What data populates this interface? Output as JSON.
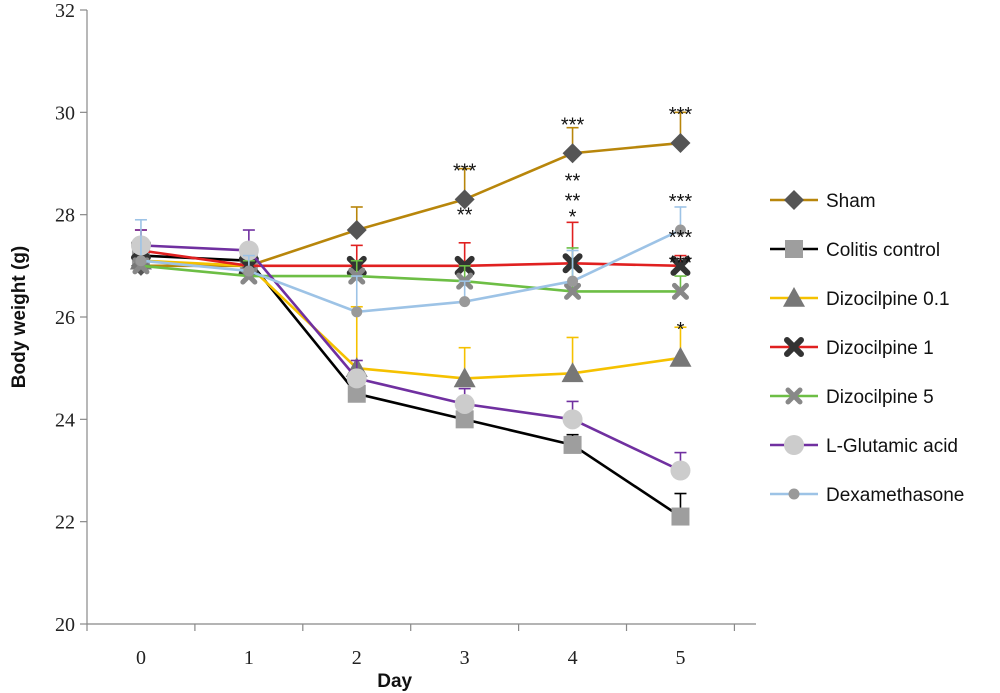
{
  "chart_data": {
    "type": "line",
    "xlabel": "Day",
    "ylabel": "Body weight (g)",
    "x": [
      0,
      1,
      2,
      3,
      4,
      5
    ],
    "xlim": [
      -0.5,
      5.7
    ],
    "ylim": [
      20,
      32
    ],
    "yticks": [
      20,
      22,
      24,
      26,
      28,
      30,
      32
    ],
    "grid": false,
    "legend_position": "right",
    "series": [
      {
        "name": "Sham",
        "color": "#B8860B",
        "marker": "diamond",
        "marker_color": "#555555",
        "values": [
          27.0,
          27.0,
          27.7,
          28.3,
          29.2,
          29.4
        ],
        "errors": [
          0.2,
          0.3,
          0.45,
          0.6,
          0.5,
          0.6
        ]
      },
      {
        "name": "Colitis control",
        "color": "#000000",
        "marker": "square",
        "marker_color": "#9e9e9e",
        "values": [
          27.2,
          27.1,
          24.5,
          24.0,
          23.5,
          22.1
        ],
        "errors": [
          0.3,
          0.3,
          0.2,
          0.2,
          0.2,
          0.45
        ]
      },
      {
        "name": "Dizocilpine 0.1",
        "color": "#F5C100",
        "marker": "triangle",
        "marker_color": "#777777",
        "values": [
          27.1,
          27.0,
          25.0,
          24.8,
          24.9,
          25.2
        ],
        "errors": [
          0.4,
          0.4,
          1.2,
          0.6,
          0.7,
          0.6
        ]
      },
      {
        "name": "Dizocilpine 1",
        "color": "#E02020",
        "marker": "x-bold",
        "marker_color": "#333333",
        "values": [
          27.3,
          27.0,
          27.0,
          27.0,
          27.05,
          27.0
        ],
        "errors": [
          0.4,
          0.35,
          0.4,
          0.45,
          0.8,
          0.2
        ]
      },
      {
        "name": "Dizocilpine 5",
        "color": "#6DBE45",
        "marker": "x",
        "marker_color": "#888888",
        "values": [
          27.0,
          26.8,
          26.8,
          26.7,
          26.5,
          26.5
        ],
        "errors": [
          0.3,
          0.3,
          0.3,
          0.3,
          0.85,
          0.3
        ]
      },
      {
        "name": "L-Glutamic acid",
        "color": "#7030A0",
        "marker": "circle",
        "marker_color": "#cccccc",
        "values": [
          27.4,
          27.3,
          24.8,
          24.3,
          24.0,
          23.0
        ],
        "errors": [
          0.3,
          0.4,
          0.35,
          0.3,
          0.35,
          0.35
        ]
      },
      {
        "name": "Dexamethasone",
        "color": "#9DC3E6",
        "marker": "small-circle",
        "marker_color": "#999999",
        "values": [
          27.1,
          26.9,
          26.1,
          26.3,
          26.7,
          27.7
        ],
        "errors": [
          0.8,
          0.3,
          0.7,
          0.4,
          0.6,
          0.45
        ]
      }
    ],
    "annotations": [
      {
        "x": 3,
        "y": 28.3,
        "position": "above",
        "text": "***"
      },
      {
        "x": 3,
        "y": 28.3,
        "position": "below",
        "text": "**"
      },
      {
        "x": 4,
        "y": 29.2,
        "position": "above",
        "text": "***"
      },
      {
        "x": 4,
        "y": 29.2,
        "position": "below-1",
        "text": "**"
      },
      {
        "x": 4,
        "y": 29.2,
        "position": "below-2",
        "text": "**"
      },
      {
        "x": 4,
        "y": 29.2,
        "position": "below-3",
        "text": "*"
      },
      {
        "x": 5,
        "y": 29.4,
        "position": "above",
        "text": "***"
      },
      {
        "x": 5,
        "y": 27.7,
        "position": "above",
        "text": "***"
      },
      {
        "x": 5,
        "y": 27.0,
        "position": "above",
        "text": "***"
      },
      {
        "x": 5,
        "y": 26.5,
        "position": "above",
        "text": "***"
      },
      {
        "x": 5,
        "y": 25.2,
        "position": "above",
        "text": "*"
      }
    ]
  }
}
